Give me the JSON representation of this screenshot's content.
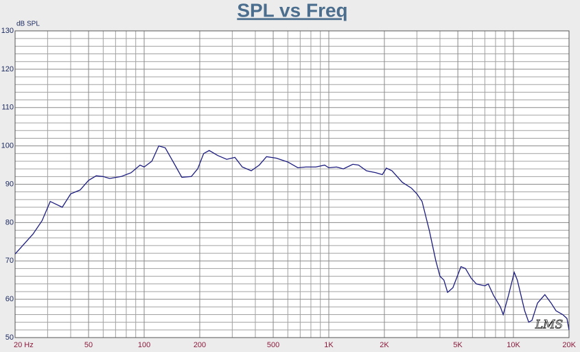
{
  "chart_data": {
    "type": "line",
    "title": "SPL vs Freq",
    "y_label": "dB SPL",
    "watermark": "LMS",
    "x": [
      20,
      25,
      28,
      31,
      36,
      40,
      45,
      50,
      55,
      60,
      65,
      75,
      85,
      95,
      100,
      110,
      120,
      130,
      145,
      160,
      180,
      195,
      210,
      225,
      250,
      280,
      310,
      340,
      380,
      420,
      460,
      520,
      600,
      680,
      750,
      850,
      950,
      1000,
      1100,
      1200,
      1350,
      1450,
      1600,
      1800,
      1950,
      2050,
      2200,
      2500,
      2800,
      3000,
      3200,
      3500,
      3800,
      4000,
      4200,
      4400,
      4700,
      5200,
      5500,
      5900,
      6300,
      7000,
      7300,
      7800,
      8500,
      8800,
      9400,
      10100,
      10500,
      11500,
      12100,
      12600,
      13500,
      14800,
      16000,
      17000,
      18500,
      19500,
      20000
    ],
    "values": [
      71.8,
      77,
      80.5,
      85.5,
      84,
      87.5,
      88.5,
      91,
      92.2,
      92,
      91.5,
      92,
      93,
      95,
      94.5,
      96,
      100,
      99.5,
      95.5,
      91.8,
      92,
      94,
      98,
      98.8,
      97.5,
      96.5,
      97,
      94.5,
      93.5,
      95,
      97.2,
      96.8,
      95.8,
      94.3,
      94.5,
      94.5,
      95,
      94.3,
      94.5,
      94,
      95.2,
      95,
      93.5,
      93,
      92.5,
      94.2,
      93.5,
      90.5,
      89,
      87.5,
      85.5,
      78,
      70,
      66,
      65,
      61.8,
      63,
      68.5,
      68,
      65.5,
      64,
      63.5,
      64,
      61,
      58,
      56,
      61,
      67,
      65,
      57,
      54,
      54.5,
      59,
      61.2,
      59,
      57,
      56,
      55,
      52
    ],
    "color": "#1c1c80",
    "x_scale": "log",
    "grid": true,
    "xlim": [
      20,
      20000
    ],
    "xticks": [
      {
        "value": 20,
        "label": "20 Hz"
      },
      50,
      100,
      200,
      500,
      {
        "value": 1000,
        "label": "1K"
      },
      {
        "value": 2000,
        "label": "2K"
      },
      {
        "value": 5000,
        "label": "5K"
      },
      {
        "value": 10000,
        "label": "10K"
      },
      {
        "value": 20000,
        "label": "20K"
      }
    ],
    "xminorticks": [
      30,
      40,
      60,
      70,
      80,
      90,
      300,
      400,
      600,
      700,
      800,
      900,
      3000,
      4000,
      6000,
      7000,
      8000,
      9000
    ],
    "ylim": [
      50,
      130
    ],
    "yticks": [
      50,
      60,
      70,
      80,
      90,
      100,
      110,
      120,
      130
    ],
    "yminorticks": [
      52,
      54,
      56,
      58,
      62,
      64,
      66,
      68,
      72,
      74,
      76,
      78,
      82,
      84,
      86,
      88,
      92,
      94,
      96,
      98,
      102,
      104,
      106,
      108,
      112,
      114,
      116,
      118,
      122,
      124,
      126,
      128
    ]
  }
}
